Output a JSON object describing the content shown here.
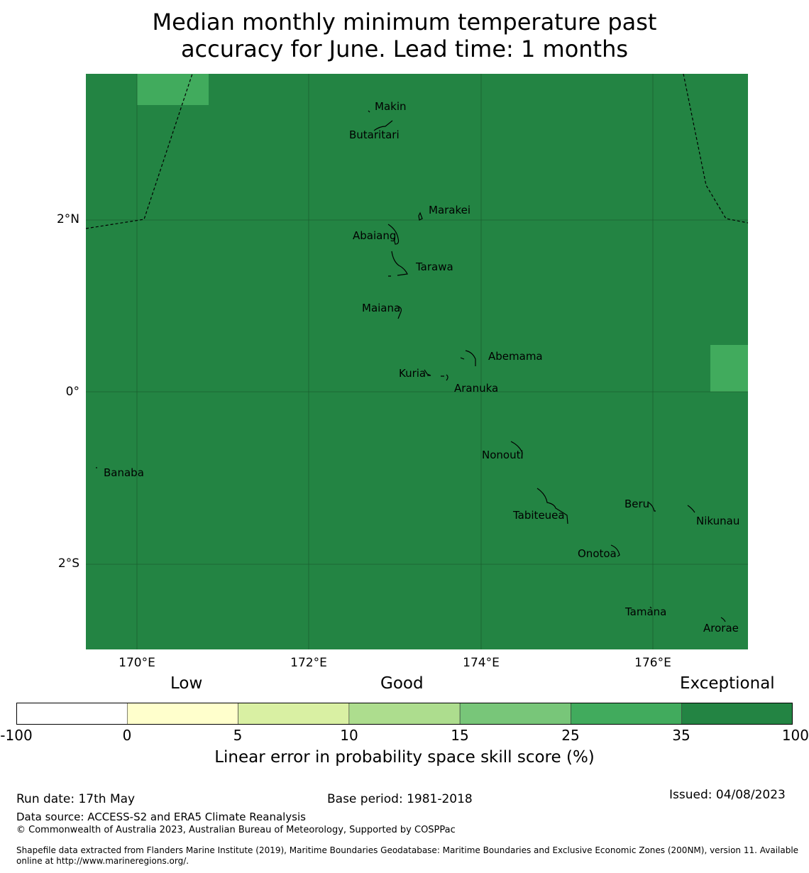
{
  "title": {
    "line1": "Median monthly minimum temperature past",
    "line2": "accuracy for June. Lead time: 1 months"
  },
  "map": {
    "lat_labels": [
      "2°N",
      "0°",
      "2°S"
    ],
    "lon_labels": [
      "170°E",
      "172°E",
      "174°E",
      "176°E"
    ],
    "islands": [
      "Makin",
      "Butaritari",
      "Marakei",
      "Abaiang",
      "Tarawa",
      "Maiana",
      "Abemama",
      "Kuria",
      "Aranuka",
      "Banaba",
      "Nonouti",
      "Beru",
      "Tabiteuea",
      "Nikunau",
      "Onotoa",
      "Tamana",
      "Arorae"
    ],
    "base_fill_color": "#238443",
    "patch_fill_color": "#41ab5d",
    "patch_categories": [
      "25 to 35"
    ],
    "base_category": "35 to 100"
  },
  "colorbar": {
    "categories": [
      "Low",
      "Good",
      "Exceptional"
    ],
    "ticks": [
      "-100",
      "0",
      "5",
      "10",
      "15",
      "25",
      "35",
      "100"
    ],
    "colors": [
      "#ffffff",
      "#ffffcc",
      "#d9f0a3",
      "#addd8e",
      "#78c679",
      "#41ab5d",
      "#238443"
    ],
    "label": "Linear error in probability space skill score (%)"
  },
  "footer": {
    "run_date": "Run date: 17th May",
    "base_period": "Base period: 1981-2018",
    "issued": "Issued: 04/08/2023",
    "data_source": "Data source: ACCESS-S2 and ERA5 Climate Reanalysis",
    "copyright": "© Commonwealth of Australia 2023, Australian Bureau of Meteorology, Supported by COSPPac",
    "shapefile_line1": "Shapefile data extracted from Flanders Marine Institute (2019), Maritime Boundaries Geodatabase: Maritime Boundaries and Exclusive Economic Zones (200NM), version 11. Available",
    "shapefile_line2": "online at http://www.marineregions.org/."
  }
}
